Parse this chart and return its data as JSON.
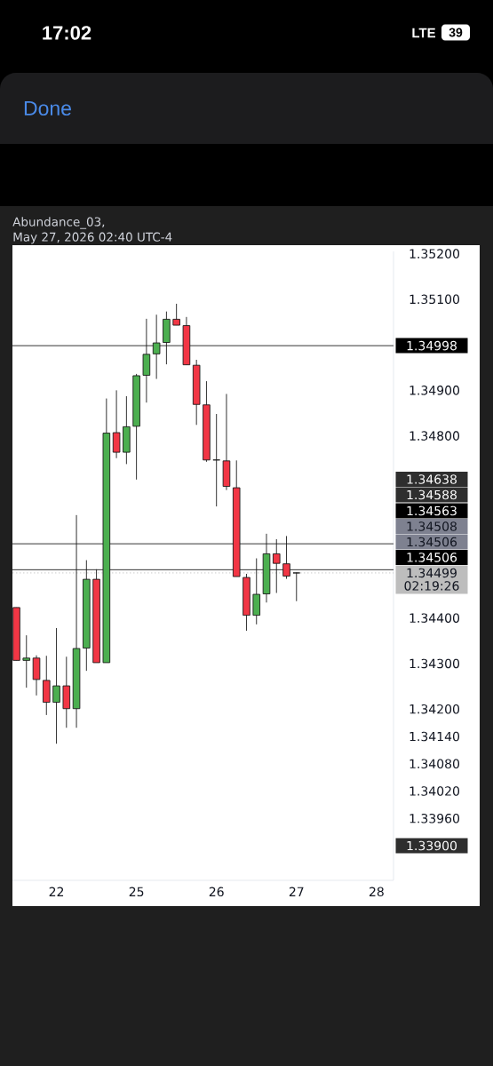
{
  "chart_data": {
    "type": "candlestick",
    "title": "Abundance_03,",
    "subtitle": "May 27, 2026 02:40 UTC-4",
    "categories": [
      null,
      null,
      null,
      null,
      "22",
      null,
      null,
      null,
      null,
      null,
      null,
      null,
      "25",
      null,
      null,
      null,
      null,
      null,
      null,
      null,
      "26",
      null,
      null,
      null,
      null,
      null,
      null,
      null,
      "27",
      null,
      null,
      null,
      null,
      null,
      null,
      null,
      "28",
      null
    ],
    "ohlc": [
      [
        1.34423,
        1.34423,
        1.34307,
        1.34307
      ],
      [
        1.34307,
        1.34362,
        1.34247,
        1.34312
      ],
      [
        1.34312,
        1.34318,
        1.3423,
        1.34265
      ],
      [
        1.34263,
        1.34317,
        1.34187,
        1.34215
      ],
      [
        1.34215,
        1.34378,
        1.34124,
        1.34251
      ],
      [
        1.34251,
        1.34315,
        1.34159,
        1.34201
      ],
      [
        1.34201,
        1.34626,
        1.34159,
        1.34333
      ],
      [
        1.34334,
        1.34527,
        1.34284,
        1.34485
      ],
      [
        1.34485,
        1.34507,
        1.34302,
        1.34302
      ],
      [
        1.34302,
        1.34882,
        1.34302,
        1.34806
      ],
      [
        1.34807,
        1.349,
        1.34751,
        1.34764
      ],
      [
        1.34764,
        1.34887,
        1.34738,
        1.3482
      ],
      [
        1.34821,
        1.34936,
        1.34704,
        1.34932
      ],
      [
        1.34933,
        1.35057,
        1.34873,
        1.34979
      ],
      [
        1.3498,
        1.35066,
        1.34925,
        1.35004
      ],
      [
        1.35005,
        1.35073,
        1.34957,
        1.35056
      ],
      [
        1.35056,
        1.3509,
        1.35043,
        1.35043
      ],
      [
        1.35042,
        1.35061,
        1.34956,
        1.34956
      ],
      [
        1.34955,
        1.34967,
        1.34824,
        1.34869
      ],
      [
        1.34868,
        1.3492,
        1.34743,
        1.34747
      ],
      [
        1.34747,
        1.34848,
        1.34645,
        1.34747
      ],
      [
        1.34745,
        1.34892,
        1.34681,
        1.34689
      ],
      [
        1.34686,
        1.34746,
        1.34491,
        1.34491
      ],
      [
        1.34489,
        1.34497,
        1.34372,
        1.34406
      ],
      [
        1.34406,
        1.34531,
        1.34386,
        1.34452
      ],
      [
        1.34453,
        1.34585,
        1.34434,
        1.34541
      ],
      [
        1.34541,
        1.34573,
        1.34455,
        1.3452
      ],
      [
        1.34519,
        1.3458,
        1.34486,
        1.34492
      ],
      [
        1.34499,
        1.345,
        1.34437,
        1.34499
      ],
      null,
      null,
      null,
      null,
      null,
      null,
      null,
      null,
      null
    ],
    "colors": [
      "#f23645",
      "#4caf50",
      "#f23645",
      "#f23645",
      "#4caf50",
      "#f23645",
      "#4caf50",
      "#4caf50",
      "#f23645",
      "#4caf50",
      "#f23645",
      "#4caf50",
      "#4caf50",
      "#4caf50",
      "#4caf50",
      "#4caf50",
      "#f23645",
      "#f23645",
      "#f23645",
      "#f23645",
      "#222222",
      "#f23645",
      "#f23645",
      "#f23645",
      "#4caf50",
      "#4caf50",
      "#f23645",
      "#f23645",
      "#222222",
      null,
      null,
      null,
      null,
      null,
      null,
      null,
      null,
      null
    ],
    "ylim": [
      1.33824,
      1.35205
    ],
    "yticks": [
      {
        "value": 1.352,
        "label": "1.35200"
      },
      {
        "value": 1.351,
        "label": "1.35100"
      },
      {
        "value": 1.349,
        "label": "1.34900"
      },
      {
        "value": 1.348,
        "label": "1.34800"
      },
      {
        "value": 1.344,
        "label": "1.34400"
      },
      {
        "value": 1.343,
        "label": "1.34300"
      },
      {
        "value": 1.342,
        "label": "1.34200"
      },
      {
        "value": 1.3414,
        "label": "1.34140"
      },
      {
        "value": 1.3408,
        "label": "1.34080"
      },
      {
        "value": 1.3402,
        "label": "1.34020"
      },
      {
        "value": 1.3396,
        "label": "1.33960"
      }
    ],
    "ref_lines": [
      {
        "axis": "y",
        "value": 1.34998,
        "label": "1.34998",
        "color": "#000000"
      },
      {
        "axis": "y",
        "value": 1.34563,
        "label": "1.34563",
        "color": "#000000"
      },
      {
        "axis": "y",
        "value": 1.34506,
        "label": "1.34506",
        "color": "#000000"
      },
      {
        "axis": "y",
        "value": 1.34499,
        "label": "1.34499",
        "color": "#bdbdbd",
        "line_style": "dotted"
      }
    ],
    "annotations": [
      "17:02",
      "LTE",
      "39",
      "Done",
      "02:19:26",
      "1.34638",
      "1.34588",
      "1.34508",
      "1.34506",
      "1.33900"
    ]
  }
}
